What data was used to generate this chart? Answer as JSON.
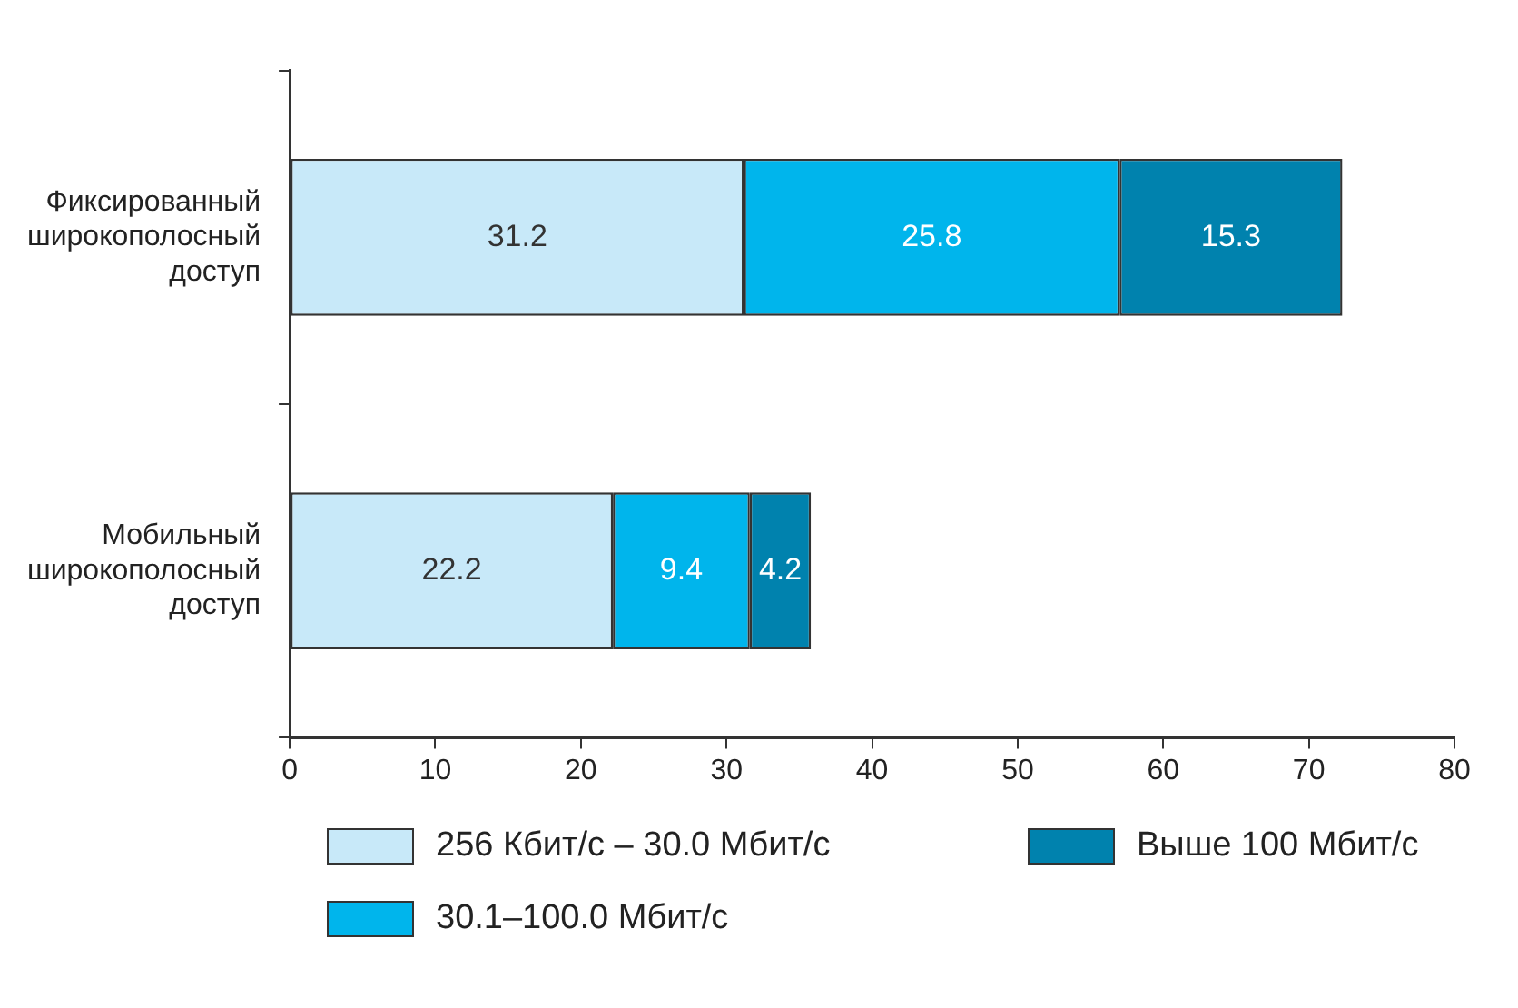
{
  "chart_data": {
    "type": "bar",
    "orientation": "horizontal",
    "stacked": true,
    "data_labels": true,
    "legend": "bottom",
    "grid": false,
    "categories": [
      "Фиксированный широкополосный доступ",
      "Мобильный широкополосный доступ"
    ],
    "series": [
      {
        "name": "256 Кбит/с – 30.0 Мбит/с",
        "color": "#c8e9f9",
        "values": [
          31.2,
          22.2
        ]
      },
      {
        "name": "30.1–100.0 Мбит/с",
        "color": "#00b5ec",
        "values": [
          25.8,
          9.4
        ]
      },
      {
        "name": "Выше 100 Мбит/с",
        "color": "#0082ae",
        "values": [
          15.3,
          4.2
        ]
      }
    ],
    "xlim": [
      0,
      80
    ],
    "xticks": [
      0,
      10,
      20,
      30,
      40,
      50,
      60,
      70,
      80
    ]
  }
}
